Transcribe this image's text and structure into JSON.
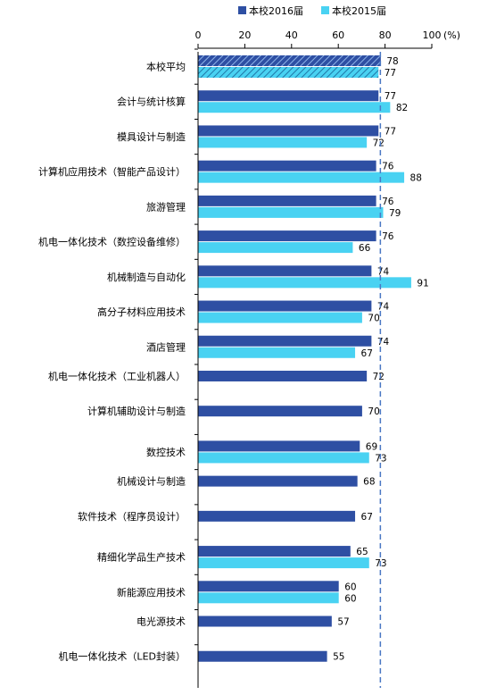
{
  "chart_data": {
    "type": "bar",
    "orientation": "horizontal",
    "unit": "(%)",
    "xlim": [
      0,
      100
    ],
    "ticks": [
      "0",
      "20",
      "40",
      "60",
      "80",
      "100"
    ],
    "tick_values": [
      0,
      20,
      40,
      60,
      80,
      100
    ],
    "legend_position": "top",
    "reference_line": 78,
    "categories": [
      "本校平均",
      "会计与统计核算",
      "模具设计与制造",
      "计算机应用技术（智能产品设计）",
      "旅游管理",
      "机电一体化技术（数控设备维修）",
      "机械制造与自动化",
      "高分子材料应用技术",
      "酒店管理",
      "机电一体化技术（工业机器人）",
      "计算机辅助设计与制造",
      "数控技术",
      "机械设计与制造",
      "软件技术（程序员设计）",
      "精细化学品生产技术",
      "新能源应用技术",
      "电光源技术",
      "机电一体化技术（LED封装）"
    ],
    "series": [
      {
        "name": "本校2016届",
        "color": "#2e4fa3",
        "values": [
          78,
          77,
          77,
          76,
          76,
          76,
          74,
          74,
          74,
          72,
          70,
          69,
          68,
          67,
          65,
          60,
          57,
          55
        ],
        "labels": [
          "78",
          "77",
          "77",
          "76",
          "76",
          "76",
          "74",
          "74",
          "74",
          "72",
          "70",
          "69",
          "68",
          "67",
          "65",
          "60",
          "57",
          "55"
        ]
      },
      {
        "name": "本校2015届",
        "color": "#49d2f2",
        "values": [
          77,
          82,
          72,
          88,
          79,
          66,
          91,
          70,
          67,
          null,
          null,
          73,
          null,
          null,
          73,
          60,
          null,
          null
        ],
        "labels": [
          "77",
          "82",
          "72",
          "88",
          "79",
          "66",
          "91",
          "70",
          "67",
          "",
          "",
          "73",
          "",
          "",
          "73",
          "60",
          "",
          ""
        ]
      }
    ]
  }
}
